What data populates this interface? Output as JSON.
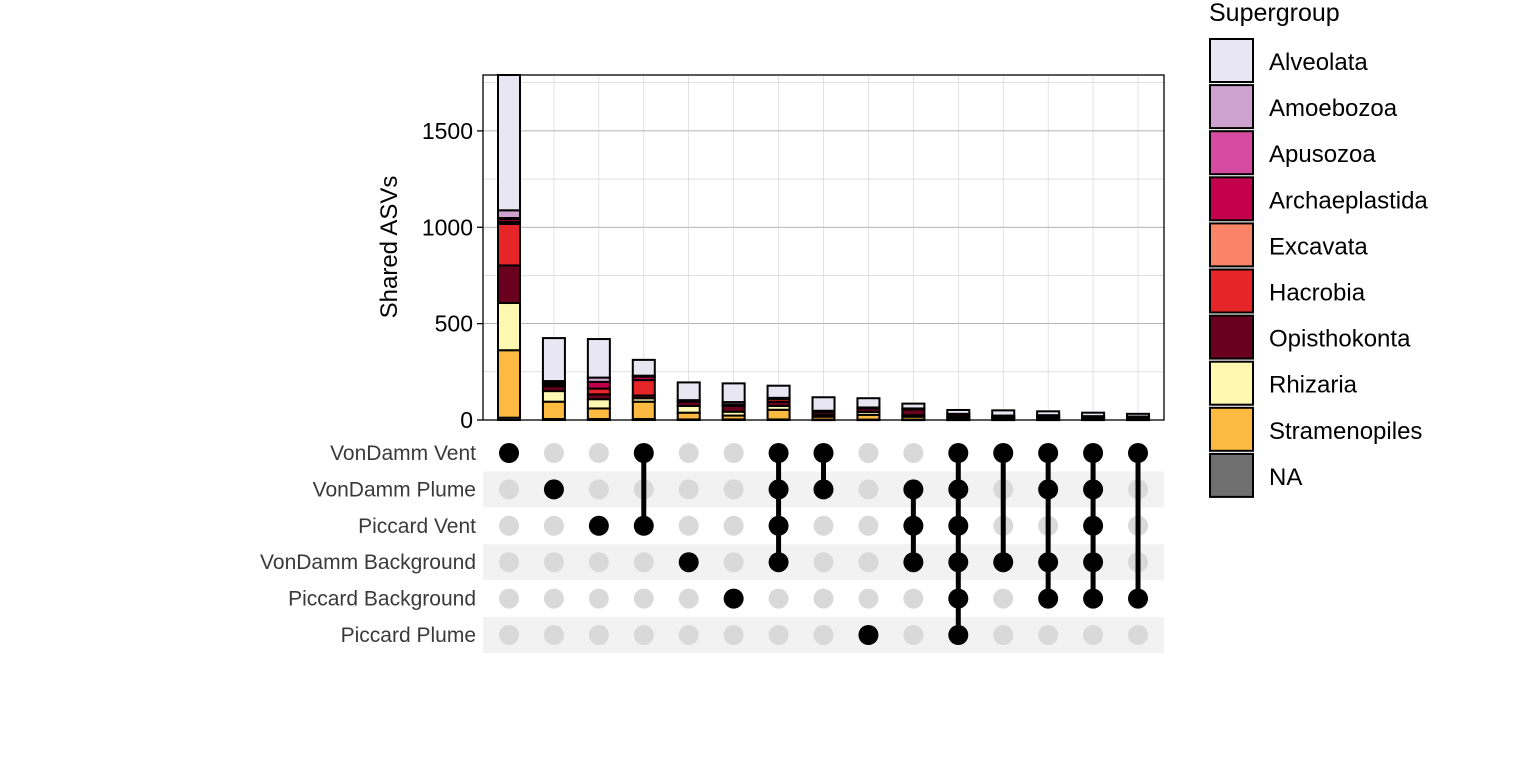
{
  "chart_data": {
    "type": "bar",
    "subtype": "upset",
    "ylabel": "Shared ASVs",
    "ylim": [
      0,
      1790
    ],
    "yticks": [
      0,
      500,
      1000,
      1500
    ],
    "grid": true,
    "sets": [
      "VonDamm Vent",
      "VonDamm Plume",
      "Piccard Vent",
      "VonDamm Background",
      "Piccard Background",
      "Piccard Plume"
    ],
    "legend": {
      "title": "Supergroup",
      "position": "right",
      "entries": [
        {
          "name": "Alveolata",
          "color": "#E8E6F2"
        },
        {
          "name": "Amoebozoa",
          "color": "#CDA2CE"
        },
        {
          "name": "Apusozoa",
          "color": "#D64BA0"
        },
        {
          "name": "Archaeplastida",
          "color": "#C4004C"
        },
        {
          "name": "Excavata",
          "color": "#F98468"
        },
        {
          "name": "Hacrobia",
          "color": "#E52528"
        },
        {
          "name": "Opisthokonta",
          "color": "#6A0020"
        },
        {
          "name": "Rhizaria",
          "color": "#FFF8B0"
        },
        {
          "name": "Stramenopiles",
          "color": "#FCBA40"
        },
        {
          "name": "NA",
          "color": "#6F6F6F"
        }
      ]
    },
    "intersections": [
      {
        "sets": [
          "VonDamm Vent"
        ],
        "total": 1790,
        "segments": [
          {
            "group": "NA",
            "value": 12
          },
          {
            "group": "Stramenopiles",
            "value": 350
          },
          {
            "group": "Rhizaria",
            "value": 245
          },
          {
            "group": "Opisthokonta",
            "value": 195
          },
          {
            "group": "Hacrobia",
            "value": 215
          },
          {
            "group": "Excavata",
            "value": 10
          },
          {
            "group": "Archaeplastida",
            "value": 15
          },
          {
            "group": "Apusozoa",
            "value": 6
          },
          {
            "group": "Amoebozoa",
            "value": 40
          },
          {
            "group": "Alveolata",
            "value": 702
          }
        ]
      },
      {
        "sets": [
          "VonDamm Plume"
        ],
        "total": 425,
        "segments": [
          {
            "group": "NA",
            "value": 5
          },
          {
            "group": "Stramenopiles",
            "value": 90
          },
          {
            "group": "Rhizaria",
            "value": 55
          },
          {
            "group": "Opisthokonta",
            "value": 25
          },
          {
            "group": "Hacrobia",
            "value": 10
          },
          {
            "group": "Archaeplastida",
            "value": 10
          },
          {
            "group": "Amoebozoa",
            "value": 7
          },
          {
            "group": "Alveolata",
            "value": 223
          }
        ]
      },
      {
        "sets": [
          "Piccard Vent"
        ],
        "total": 420,
        "segments": [
          {
            "group": "NA",
            "value": 5
          },
          {
            "group": "Stramenopiles",
            "value": 55
          },
          {
            "group": "Rhizaria",
            "value": 48
          },
          {
            "group": "Opisthokonta",
            "value": 25
          },
          {
            "group": "Hacrobia",
            "value": 30
          },
          {
            "group": "Archaeplastida",
            "value": 35
          },
          {
            "group": "Amoebozoa",
            "value": 22
          },
          {
            "group": "Alveolata",
            "value": 200
          }
        ]
      },
      {
        "sets": [
          "VonDamm Vent",
          "Piccard Vent"
        ],
        "total": 312,
        "segments": [
          {
            "group": "NA",
            "value": 5
          },
          {
            "group": "Stramenopiles",
            "value": 90
          },
          {
            "group": "Rhizaria",
            "value": 18
          },
          {
            "group": "Opisthokonta",
            "value": 14
          },
          {
            "group": "Hacrobia",
            "value": 80
          },
          {
            "group": "Archaeplastida",
            "value": 18
          },
          {
            "group": "Amoebozoa",
            "value": 5
          },
          {
            "group": "Alveolata",
            "value": 82
          }
        ]
      },
      {
        "sets": [
          "VonDamm Background"
        ],
        "total": 195,
        "segments": [
          {
            "group": "NA",
            "value": 3
          },
          {
            "group": "Stramenopiles",
            "value": 35
          },
          {
            "group": "Rhizaria",
            "value": 35
          },
          {
            "group": "Opisthokonta",
            "value": 22
          },
          {
            "group": "Amoebozoa",
            "value": 8
          },
          {
            "group": "Alveolata",
            "value": 92
          }
        ]
      },
      {
        "sets": [
          "Piccard Background"
        ],
        "total": 190,
        "segments": [
          {
            "group": "NA",
            "value": 3
          },
          {
            "group": "Stramenopiles",
            "value": 20
          },
          {
            "group": "Rhizaria",
            "value": 20
          },
          {
            "group": "Opisthokonta",
            "value": 30
          },
          {
            "group": "Hacrobia",
            "value": 8
          },
          {
            "group": "Amoebozoa",
            "value": 12
          },
          {
            "group": "Alveolata",
            "value": 97
          }
        ]
      },
      {
        "sets": [
          "VonDamm Vent",
          "VonDamm Plume",
          "Piccard Vent",
          "VonDamm Background"
        ],
        "total": 178,
        "segments": [
          {
            "group": "NA",
            "value": 3
          },
          {
            "group": "Stramenopiles",
            "value": 50
          },
          {
            "group": "Rhizaria",
            "value": 20
          },
          {
            "group": "Opisthokonta",
            "value": 22
          },
          {
            "group": "Hacrobia",
            "value": 15
          },
          {
            "group": "Amoebozoa",
            "value": 5
          },
          {
            "group": "Alveolata",
            "value": 63
          }
        ]
      },
      {
        "sets": [
          "VonDamm Vent",
          "VonDamm Plume"
        ],
        "total": 118,
        "segments": [
          {
            "group": "NA",
            "value": 2
          },
          {
            "group": "Stramenopiles",
            "value": 15
          },
          {
            "group": "Rhizaria",
            "value": 8
          },
          {
            "group": "Opisthokonta",
            "value": 15
          },
          {
            "group": "Hacrobia",
            "value": 5
          },
          {
            "group": "Amoebozoa",
            "value": 3
          },
          {
            "group": "Alveolata",
            "value": 70
          }
        ]
      },
      {
        "sets": [
          "Piccard Plume"
        ],
        "total": 113,
        "segments": [
          {
            "group": "NA",
            "value": 2
          },
          {
            "group": "Stramenopiles",
            "value": 25
          },
          {
            "group": "Rhizaria",
            "value": 15
          },
          {
            "group": "Opisthokonta",
            "value": 18
          },
          {
            "group": "Hacrobia",
            "value": 5
          },
          {
            "group": "Alveolata",
            "value": 48
          }
        ]
      },
      {
        "sets": [
          "VonDamm Plume",
          "Piccard Vent",
          "VonDamm Background"
        ],
        "total": 85,
        "segments": [
          {
            "group": "NA",
            "value": 2
          },
          {
            "group": "Stramenopiles",
            "value": 15
          },
          {
            "group": "Rhizaria",
            "value": 8
          },
          {
            "group": "Opisthokonta",
            "value": 30
          },
          {
            "group": "Hacrobia",
            "value": 5
          },
          {
            "group": "Alveolata",
            "value": 25
          }
        ]
      },
      {
        "sets": [
          "VonDamm Vent",
          "VonDamm Plume",
          "Piccard Vent",
          "VonDamm Background",
          "Piccard Background",
          "Piccard Plume"
        ],
        "total": 52,
        "segments": [
          {
            "group": "NA",
            "value": 2
          },
          {
            "group": "Stramenopiles",
            "value": 10
          },
          {
            "group": "Rhizaria",
            "value": 8
          },
          {
            "group": "Opisthokonta",
            "value": 12
          },
          {
            "group": "Alveolata",
            "value": 20
          }
        ]
      },
      {
        "sets": [
          "VonDamm Vent",
          "VonDamm Background"
        ],
        "total": 50,
        "segments": [
          {
            "group": "NA",
            "value": 2
          },
          {
            "group": "Stramenopiles",
            "value": 8
          },
          {
            "group": "Rhizaria",
            "value": 5
          },
          {
            "group": "Opisthokonta",
            "value": 8
          },
          {
            "group": "Alveolata",
            "value": 27
          }
        ]
      },
      {
        "sets": [
          "VonDamm Vent",
          "VonDamm Plume",
          "VonDamm Background",
          "Piccard Background"
        ],
        "total": 45,
        "segments": [
          {
            "group": "NA",
            "value": 2
          },
          {
            "group": "Stramenopiles",
            "value": 8
          },
          {
            "group": "Rhizaria",
            "value": 5
          },
          {
            "group": "Opisthokonta",
            "value": 10
          },
          {
            "group": "Alveolata",
            "value": 20
          }
        ]
      },
      {
        "sets": [
          "VonDamm Vent",
          "VonDamm Plume",
          "Piccard Vent",
          "VonDamm Background",
          "Piccard Background"
        ],
        "total": 38,
        "segments": [
          {
            "group": "NA",
            "value": 2
          },
          {
            "group": "Stramenopiles",
            "value": 8
          },
          {
            "group": "Opisthokonta",
            "value": 10
          },
          {
            "group": "Alveolata",
            "value": 18
          }
        ]
      },
      {
        "sets": [
          "VonDamm Vent",
          "Piccard Background"
        ],
        "total": 32,
        "segments": [
          {
            "group": "NA",
            "value": 2
          },
          {
            "group": "Stramenopiles",
            "value": 6
          },
          {
            "group": "Opisthokonta",
            "value": 10
          },
          {
            "group": "Alveolata",
            "value": 14
          }
        ]
      }
    ]
  }
}
